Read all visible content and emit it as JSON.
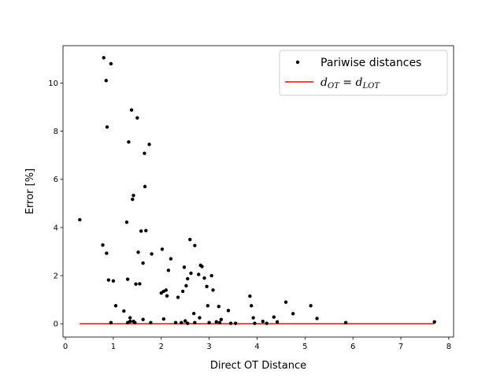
{
  "chart_data": {
    "type": "scatter",
    "title": "",
    "xlabel": "Direct OT Distance",
    "ylabel": "Error [%]",
    "xlim": [
      -0.05,
      8.1
    ],
    "ylim": [
      -0.55,
      11.55
    ],
    "xticks": [
      0,
      1,
      2,
      3,
      4,
      5,
      6,
      7,
      8
    ],
    "yticks": [
      0,
      2,
      4,
      6,
      8,
      10
    ],
    "grid": false,
    "legend_position": "top-right",
    "colors": {
      "points": "#000000",
      "line": "#ff0000"
    },
    "series": [
      {
        "name": "Pariwise distances",
        "kind": "scatter",
        "x": [
          0.3,
          0.78,
          0.8,
          0.85,
          0.86,
          0.87,
          0.9,
          0.95,
          1.0,
          1.05,
          1.22,
          1.28,
          1.3,
          1.32,
          1.35,
          1.38,
          1.4,
          1.42,
          1.47,
          1.5,
          1.52,
          1.55,
          1.58,
          1.62,
          1.65,
          1.66,
          1.68,
          1.75,
          1.8,
          2.0,
          2.02,
          2.05,
          2.1,
          2.12,
          2.15,
          2.2,
          2.35,
          2.45,
          2.48,
          2.52,
          2.55,
          2.6,
          2.62,
          2.68,
          2.7,
          2.78,
          2.82,
          2.85,
          2.9,
          2.95,
          2.97,
          3.05,
          3.08,
          3.2,
          3.4,
          3.85,
          3.88,
          3.92,
          4.35,
          4.6,
          4.75,
          5.12,
          5.25,
          0.95,
          1.3,
          1.42,
          1.62,
          1.78,
          2.05,
          2.3,
          2.5,
          2.7,
          2.8,
          3.0,
          3.15,
          3.25,
          3.55,
          3.95,
          4.12,
          4.42,
          5.85,
          7.7,
          1.35,
          1.45,
          2.42,
          2.55,
          3.22,
          3.45,
          4.2
        ],
        "y": [
          4.32,
          3.27,
          11.05,
          10.1,
          2.93,
          8.17,
          1.82,
          10.8,
          1.78,
          0.75,
          0.53,
          4.22,
          1.85,
          7.55,
          0.25,
          8.88,
          5.17,
          5.33,
          1.65,
          8.55,
          2.97,
          1.66,
          3.85,
          2.52,
          7.08,
          5.7,
          3.87,
          7.45,
          2.9,
          1.28,
          3.1,
          1.35,
          1.4,
          1.16,
          2.22,
          2.7,
          1.1,
          1.35,
          2.35,
          1.58,
          1.87,
          3.5,
          2.1,
          0.43,
          3.25,
          2.05,
          2.43,
          2.38,
          1.9,
          1.55,
          0.75,
          2.0,
          1.4,
          0.72,
          0.55,
          1.15,
          0.75,
          0.25,
          0.28,
          0.9,
          0.42,
          0.75,
          0.22,
          0.05,
          0.05,
          0.1,
          0.18,
          0.05,
          0.2,
          0.05,
          0.12,
          0.05,
          0.25,
          0.05,
          0.08,
          0.18,
          0.02,
          0.02,
          0.1,
          0.08,
          0.05,
          0.08,
          0.1,
          0.05,
          0.05,
          0.02,
          0.05,
          0.02,
          0.02
        ]
      },
      {
        "name": "d_{OT} = d_{LOT}",
        "kind": "line",
        "x": [
          0.3,
          7.7
        ],
        "y": [
          0,
          0
        ]
      }
    ],
    "legend": {
      "scatter_label": "Pariwise distances",
      "line_label": {
        "d1": "d",
        "sub1": "OT",
        "eq": " = ",
        "d2": "d",
        "sub2": "LOT"
      }
    }
  }
}
